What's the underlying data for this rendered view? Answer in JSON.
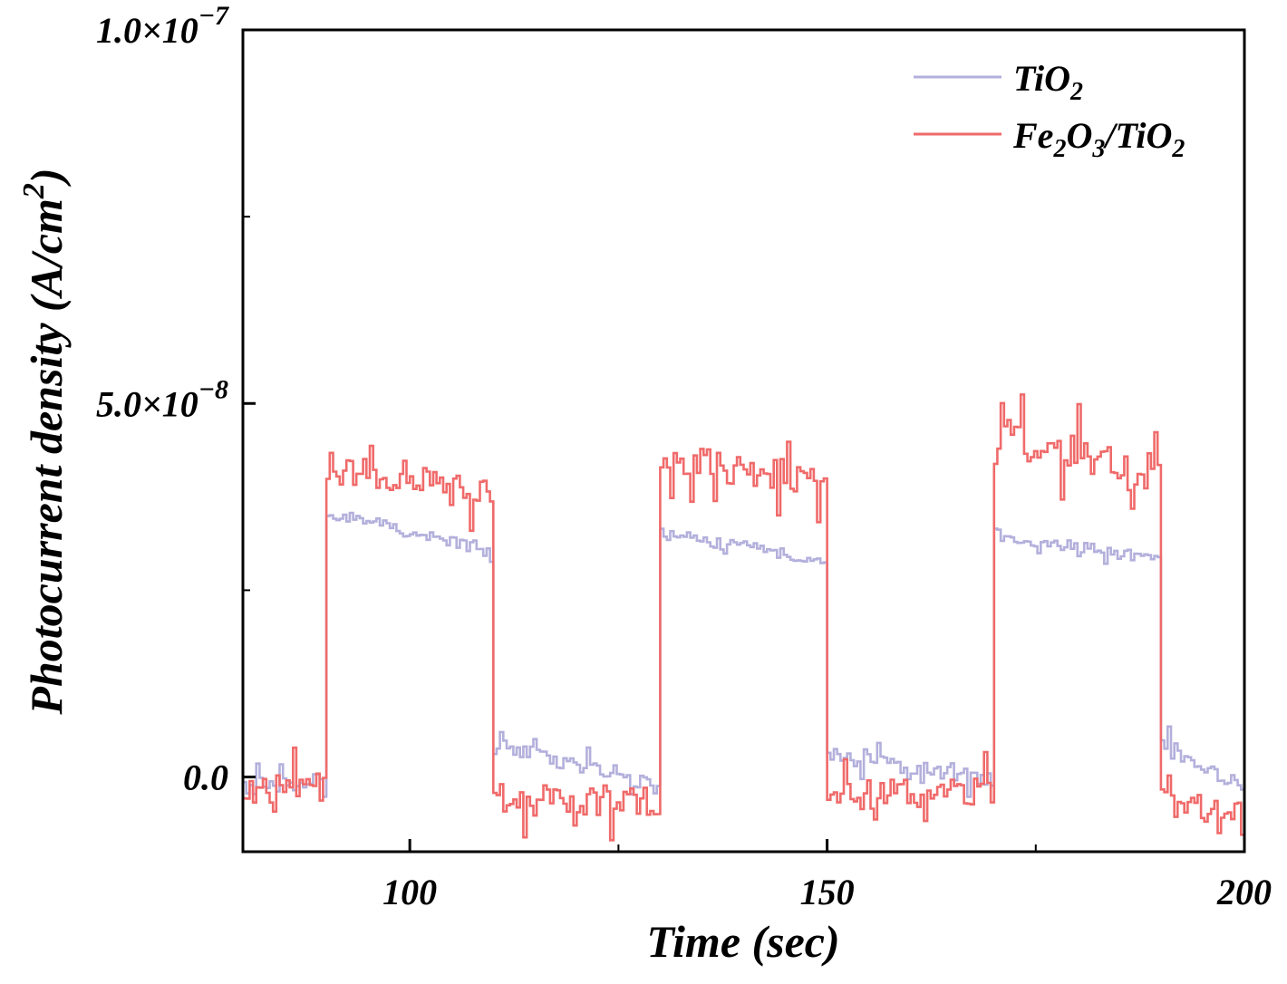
{
  "chart_data": {
    "type": "line",
    "title": "",
    "xlabel": "Time (sec)",
    "ylabel": "Photocurrent density (A/cm²)",
    "ylabel_parts": {
      "main": "Photocurrent density (A/cm",
      "sup": "2",
      "close": ")"
    },
    "xlim": [
      80,
      200
    ],
    "ylim": [
      -1e-08,
      1e-07
    ],
    "x_ticks": [
      {
        "value": 100,
        "label": "100"
      },
      {
        "value": 150,
        "label": "150"
      },
      {
        "value": 200,
        "label": "200"
      }
    ],
    "x_minor_ticks": [
      125,
      175
    ],
    "y_ticks": [
      {
        "value": 0,
        "mantissa": "0.0",
        "exponent": ""
      },
      {
        "value": 5e-08,
        "mantissa": "5.0×10",
        "exponent": "−8"
      },
      {
        "value": 1e-07,
        "mantissa": "1.0×10",
        "exponent": "−7"
      }
    ],
    "y_minor_ticks": [
      2.5e-08,
      7.5e-08
    ],
    "legend_position": "top-right",
    "series": [
      {
        "name": "TiO2",
        "label_parts": [
          "Ti",
          "O",
          "2"
        ],
        "color": "#b3b0dc",
        "segments": [
          {
            "x_start": 80,
            "x_end": 90,
            "y_start": -1.5e-09,
            "y_end": -5e-10,
            "noise": 1.2e-09
          },
          {
            "x_start": 90,
            "x_end": 110,
            "y_start": 3.55e-08,
            "y_end": 3e-08,
            "noise": 8e-10
          },
          {
            "x_start": 110,
            "x_end": 130,
            "y_start": 4.5e-09,
            "y_end": -1.5e-09,
            "noise": 1e-09
          },
          {
            "x_start": 130,
            "x_end": 150,
            "y_start": 3.25e-08,
            "y_end": 2.9e-08,
            "noise": 8e-10
          },
          {
            "x_start": 150,
            "x_end": 170,
            "y_start": 3e-09,
            "y_end": -5e-10,
            "noise": 1e-09
          },
          {
            "x_start": 170,
            "x_end": 190,
            "y_start": 3.25e-08,
            "y_end": 2.9e-08,
            "noise": 8e-10
          },
          {
            "x_start": 190,
            "x_end": 200,
            "y_start": 4.5e-09,
            "y_end": -1.5e-09,
            "noise": 1e-09
          }
        ]
      },
      {
        "name": "Fe2O3/TiO2",
        "label_parts": [
          "Fe",
          "2",
          "O",
          "3",
          "/TiO",
          "2"
        ],
        "color": "#f06a6a",
        "segments": [
          {
            "x_start": 80,
            "x_end": 90,
            "y_start": -1.5e-09,
            "y_end": -1.5e-09,
            "noise": 2e-09
          },
          {
            "x_start": 90,
            "x_end": 110,
            "y_start": 4.15e-08,
            "y_end": 3.85e-08,
            "noise": 2.2e-09
          },
          {
            "x_start": 110,
            "x_end": 130,
            "y_start": -2.5e-09,
            "y_end": -3.5e-09,
            "noise": 2e-09
          },
          {
            "x_start": 130,
            "x_end": 150,
            "y_start": 4.25e-08,
            "y_end": 3.95e-08,
            "noise": 2.2e-09
          },
          {
            "x_start": 150,
            "x_end": 170,
            "y_start": -2.5e-09,
            "y_end": -2e-09,
            "noise": 2e-09
          },
          {
            "x_start": 170,
            "x_end": 190,
            "y_start": 4.65e-08,
            "y_end": 4.05e-08,
            "noise": 2.5e-09
          },
          {
            "x_start": 190,
            "x_end": 200,
            "y_start": -3e-09,
            "y_end": -5.5e-09,
            "noise": 2e-09
          }
        ]
      }
    ]
  }
}
